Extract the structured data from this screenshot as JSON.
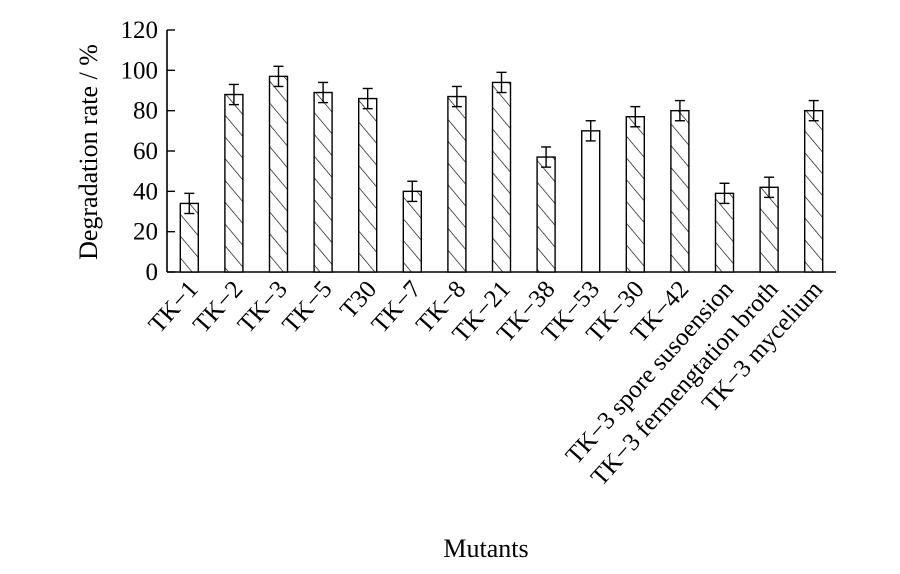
{
  "chart_data": {
    "type": "bar",
    "categories": [
      "TK−1",
      "TK−2",
      "TK−3",
      "TK−5",
      "T30",
      "TK−7",
      "TK−8",
      "TK−21",
      "TK−38",
      "TK−53",
      "TK−30",
      "TK−42",
      "TK−3 spore susoension",
      "TK−3 fermengtation broth",
      "TK−3 mycelium"
    ],
    "values": [
      34,
      88,
      97,
      89,
      86,
      40,
      87,
      94,
      57,
      70,
      77,
      80,
      39,
      42,
      80
    ],
    "errors": [
      5,
      5,
      5,
      5,
      5,
      5,
      5,
      5,
      5,
      5,
      5,
      5,
      5,
      5,
      5
    ],
    "hatched": [
      true,
      true,
      true,
      true,
      true,
      true,
      true,
      true,
      true,
      false,
      true,
      true,
      true,
      true,
      true
    ],
    "xlabel": "Mutants",
    "ylabel": "Degradation rate / %",
    "ylim": [
      0,
      120
    ],
    "yticks": [
      "0",
      "20",
      "40",
      "60",
      "80",
      "100",
      "120"
    ],
    "grid": false,
    "legend": "none"
  }
}
